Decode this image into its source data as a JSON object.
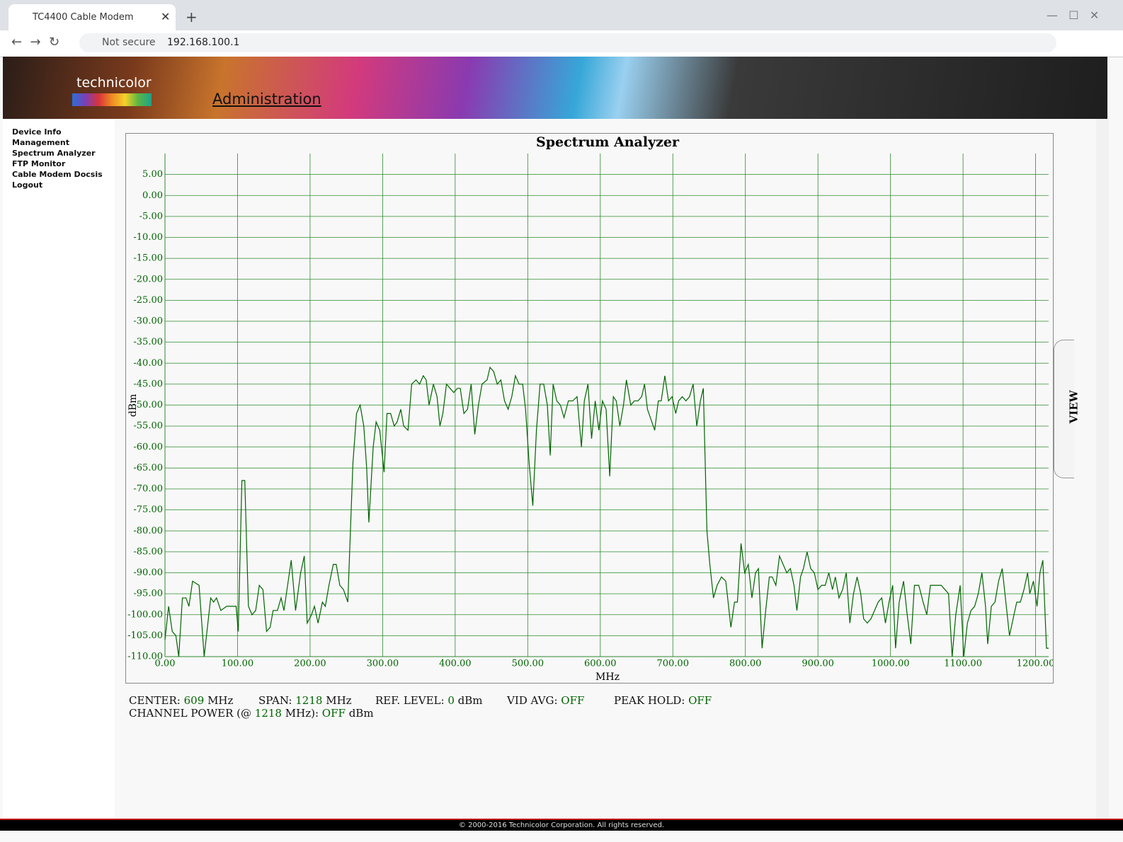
{
  "browser": {
    "tab_title": "TC4400 Cable Modem",
    "security": "Not secure",
    "url": "192.168.100.1"
  },
  "header": {
    "logo": "technicolor",
    "title": "Administration"
  },
  "sidebar": {
    "items": [
      "Device Info",
      "Management",
      "Spectrum Analyzer",
      "FTP Monitor",
      "Cable Modem Docsis",
      "Logout"
    ]
  },
  "chart_data": {
    "type": "line",
    "title": "Spectrum Analyzer",
    "xlabel": "MHz",
    "ylabel": "dBm",
    "color": "#006400",
    "grid": true,
    "xlim": [
      0,
      1218
    ],
    "ylim": [
      -110,
      10
    ],
    "xticks": [
      {
        "value": 0,
        "label": "0.00"
      },
      {
        "value": 100,
        "label": "100.00"
      },
      {
        "value": 200,
        "label": "200.00"
      },
      {
        "value": 300,
        "label": "300.00"
      },
      {
        "value": 400,
        "label": "400.00"
      },
      {
        "value": 500,
        "label": "500.00"
      },
      {
        "value": 600,
        "label": "600.00"
      },
      {
        "value": 700,
        "label": "700.00"
      },
      {
        "value": 800,
        "label": "800.00"
      },
      {
        "value": 900,
        "label": "900.00"
      },
      {
        "value": 1000,
        "label": "1000.00"
      },
      {
        "value": 1100,
        "label": "1100.00"
      },
      {
        "value": 1200,
        "label": "1200.00"
      }
    ],
    "yticks": [
      {
        "value": 5,
        "label": "5.00"
      },
      {
        "value": 0,
        "label": "0.00"
      },
      {
        "value": -5,
        "label": "-5.00"
      },
      {
        "value": -10,
        "label": "-10.00"
      },
      {
        "value": -15,
        "label": "-15.00"
      },
      {
        "value": -20,
        "label": "-20.00"
      },
      {
        "value": -25,
        "label": "-25.00"
      },
      {
        "value": -30,
        "label": "-30.00"
      },
      {
        "value": -35,
        "label": "-35.00"
      },
      {
        "value": -40,
        "label": "-40.00"
      },
      {
        "value": -45,
        "label": "-45.00"
      },
      {
        "value": -50,
        "label": "-50.00"
      },
      {
        "value": -55,
        "label": "-55.00"
      },
      {
        "value": -60,
        "label": "-60.00"
      },
      {
        "value": -65,
        "label": "-65.00"
      },
      {
        "value": -70,
        "label": "-70.00"
      },
      {
        "value": -75,
        "label": "-75.00"
      },
      {
        "value": -80,
        "label": "-80.00"
      },
      {
        "value": -85,
        "label": "-85.00"
      },
      {
        "value": -90,
        "label": "-90.00"
      },
      {
        "value": -95,
        "label": "-95.00"
      },
      {
        "value": -100,
        "label": "-100.00"
      },
      {
        "value": -105,
        "label": "-105.00"
      },
      {
        "value": -110,
        "label": "-110.00"
      }
    ],
    "x": [
      0,
      5,
      10,
      15,
      19,
      24,
      29,
      33,
      38,
      47,
      54,
      63,
      67,
      71,
      77,
      85,
      92,
      98,
      101,
      106,
      110,
      115,
      120,
      125,
      130,
      135,
      140,
      145,
      149,
      155,
      160,
      164,
      169,
      174,
      180,
      187,
      192,
      196,
      202,
      206,
      211,
      217,
      221,
      226,
      232,
      236,
      241,
      246,
      252,
      259,
      264,
      269,
      274,
      278,
      281,
      287,
      291,
      296,
      302,
      306,
      311,
      316,
      320,
      325,
      329,
      335,
      340,
      346,
      351,
      356,
      360,
      364,
      370,
      375,
      379,
      383,
      388,
      393,
      398,
      403,
      407,
      412,
      417,
      422,
      427,
      432,
      437,
      444,
      448,
      453,
      458,
      463,
      468,
      473,
      478,
      483,
      488,
      493,
      497,
      502,
      507,
      512,
      517,
      522,
      527,
      531,
      535,
      540,
      545,
      550,
      556,
      562,
      568,
      574,
      578,
      583,
      588,
      593,
      598,
      603,
      608,
      613,
      618,
      622,
      627,
      632,
      636,
      642,
      647,
      652,
      657,
      661,
      665,
      671,
      675,
      680,
      684,
      689,
      694,
      699,
      704,
      708,
      713,
      718,
      723,
      728,
      733,
      738,
      742,
      747,
      751,
      756,
      761,
      767,
      773,
      780,
      785,
      789,
      794,
      799,
      804,
      809,
      814,
      818,
      823,
      828,
      833,
      837,
      842,
      847,
      852,
      857,
      862,
      867,
      871,
      876,
      880,
      885,
      890,
      895,
      900,
      905,
      910,
      915,
      920,
      924,
      929,
      934,
      939,
      944,
      949,
      954,
      959,
      963,
      968,
      973,
      978,
      983,
      988,
      993,
      998,
      1003,
      1007,
      1012,
      1018,
      1023,
      1028,
      1033,
      1039,
      1045,
      1050,
      1055,
      1060,
      1065,
      1070,
      1075,
      1080,
      1085,
      1090,
      1096,
      1101,
      1106,
      1111,
      1116,
      1121,
      1126,
      1131,
      1134,
      1139,
      1144,
      1149,
      1154,
      1159,
      1164,
      1169,
      1174,
      1179,
      1184,
      1189,
      1192,
      1197,
      1202,
      1206,
      1210,
      1215,
      1218
    ],
    "values": [
      -106,
      -98,
      -104,
      -105,
      -110,
      -96,
      -96,
      -98,
      -92,
      -93,
      -110,
      -96,
      -97,
      -96,
      -99,
      -98,
      -98,
      -98,
      -104,
      -68,
      -68,
      -98,
      -100,
      -99,
      -93,
      -94,
      -104,
      -103,
      -99,
      -99,
      -96,
      -99,
      -93,
      -87,
      -99,
      -90,
      -86,
      -102,
      -100,
      -98,
      -102,
      -97,
      -98,
      -93,
      -88,
      -88,
      -93,
      -94,
      -97,
      -64,
      -52,
      -50,
      -55,
      -65,
      -78,
      -60,
      -54,
      -56,
      -66,
      -52,
      -52,
      -55,
      -54,
      -51,
      -55,
      -56,
      -45,
      -44,
      -45,
      -43,
      -44,
      -50,
      -45,
      -48,
      -55,
      -52,
      -45,
      -46,
      -47,
      -46,
      -46,
      -52,
      -51,
      -45,
      -57,
      -50,
      -45,
      -44,
      -41,
      -42,
      -45,
      -44,
      -49,
      -51,
      -48,
      -43,
      -45,
      -45,
      -51,
      -64,
      -74,
      -56,
      -45,
      -45,
      -50,
      -62,
      -45,
      -49,
      -50,
      -53,
      -49,
      -49,
      -48,
      -60,
      -49,
      -45,
      -58,
      -49,
      -56,
      -49,
      -51,
      -67,
      -48,
      -49,
      -55,
      -50,
      -44,
      -50,
      -49,
      -49,
      -48,
      -45,
      -51,
      -54,
      -56,
      -49,
      -49,
      -43,
      -49,
      -48,
      -52,
      -49,
      -48,
      -49,
      -48,
      -45,
      -55,
      -49,
      -46,
      -80,
      -88,
      -96,
      -93,
      -91,
      -92,
      -103,
      -97,
      -97,
      -83,
      -90,
      -88,
      -96,
      -90,
      -89,
      -108,
      -99,
      -91,
      -91,
      -93,
      -86,
      -88,
      -90,
      -89,
      -93,
      -99,
      -91,
      -89,
      -85,
      -89,
      -90,
      -94,
      -93,
      -93,
      -90,
      -94,
      -91,
      -96,
      -94,
      -90,
      -102,
      -95,
      -91,
      -95,
      -101,
      -102,
      -101,
      -99,
      -97,
      -96,
      -102,
      -97,
      -93,
      -108,
      -97,
      -92,
      -100,
      -107,
      -93,
      -93,
      -97,
      -100,
      -93,
      -93,
      -93,
      -93,
      -94,
      -95,
      -110,
      -100,
      -93,
      -110,
      -102,
      -99,
      -98,
      -95,
      -90,
      -98,
      -107,
      -98,
      -97,
      -92,
      -89,
      -97,
      -105,
      -101,
      -97,
      -97,
      -94,
      -90,
      -95,
      -92,
      -98,
      -90,
      -87,
      -108,
      -108
    ]
  },
  "info": {
    "center": {
      "label": "CENTER:",
      "value": "609",
      "unit": "MHz"
    },
    "span": {
      "label": "SPAN:",
      "value": "1218",
      "unit": "MHz"
    },
    "ref_level": {
      "label": "REF. LEVEL:",
      "value": "0",
      "unit": "dBm"
    },
    "vid_avg": {
      "label": "VID AVG:",
      "value": "OFF"
    },
    "peak_hold": {
      "label": "PEAK HOLD:",
      "value": "OFF"
    },
    "channel_power": {
      "label": "CHANNEL POWER (@",
      "freq": "1218",
      "freq_unit": "MHz):",
      "value": "OFF",
      "unit": "dBm"
    }
  },
  "view_tab": "VIEW",
  "footer": "© 2000-2016 Technicolor Corporation. All rights reserved."
}
